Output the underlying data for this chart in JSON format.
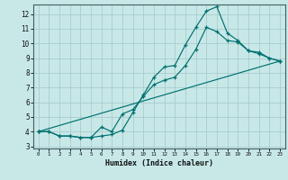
{
  "bg_color": "#c8e8e8",
  "grid_color": "#a8cccc",
  "line_color": "#007070",
  "xlabel": "Humidex (Indice chaleur)",
  "xlim": [
    -0.5,
    23.5
  ],
  "ylim": [
    2.85,
    12.65
  ],
  "x_ticks": [
    0,
    1,
    2,
    3,
    4,
    5,
    6,
    7,
    8,
    9,
    10,
    11,
    12,
    13,
    14,
    15,
    16,
    17,
    18,
    19,
    20,
    21,
    22,
    23
  ],
  "y_ticks": [
    3,
    4,
    5,
    6,
    7,
    8,
    9,
    10,
    11,
    12
  ],
  "line1_x": [
    0,
    1,
    2,
    3,
    4,
    5,
    6,
    7,
    8,
    9,
    10,
    11,
    12,
    13,
    14,
    15,
    16,
    17,
    18,
    19,
    20,
    21,
    22,
    23
  ],
  "line1_y": [
    4.0,
    4.0,
    3.7,
    3.7,
    3.6,
    3.6,
    3.7,
    3.8,
    4.1,
    5.3,
    6.5,
    7.7,
    8.4,
    8.5,
    9.9,
    11.1,
    12.2,
    12.5,
    10.7,
    10.2,
    9.5,
    9.4,
    9.0,
    8.8
  ],
  "line2_x": [
    0,
    1,
    2,
    3,
    4,
    5,
    6,
    7,
    8,
    9,
    10,
    11,
    12,
    13,
    14,
    15,
    16,
    17,
    18,
    19,
    20,
    21,
    22,
    23
  ],
  "line2_y": [
    4.0,
    4.0,
    3.7,
    3.7,
    3.6,
    3.6,
    4.3,
    4.0,
    5.2,
    5.5,
    6.4,
    7.2,
    7.5,
    7.7,
    8.5,
    9.6,
    11.1,
    10.8,
    10.2,
    10.1,
    9.5,
    9.3,
    9.0,
    8.8
  ],
  "line3_x": [
    0,
    23
  ],
  "line3_y": [
    4.0,
    8.8
  ]
}
